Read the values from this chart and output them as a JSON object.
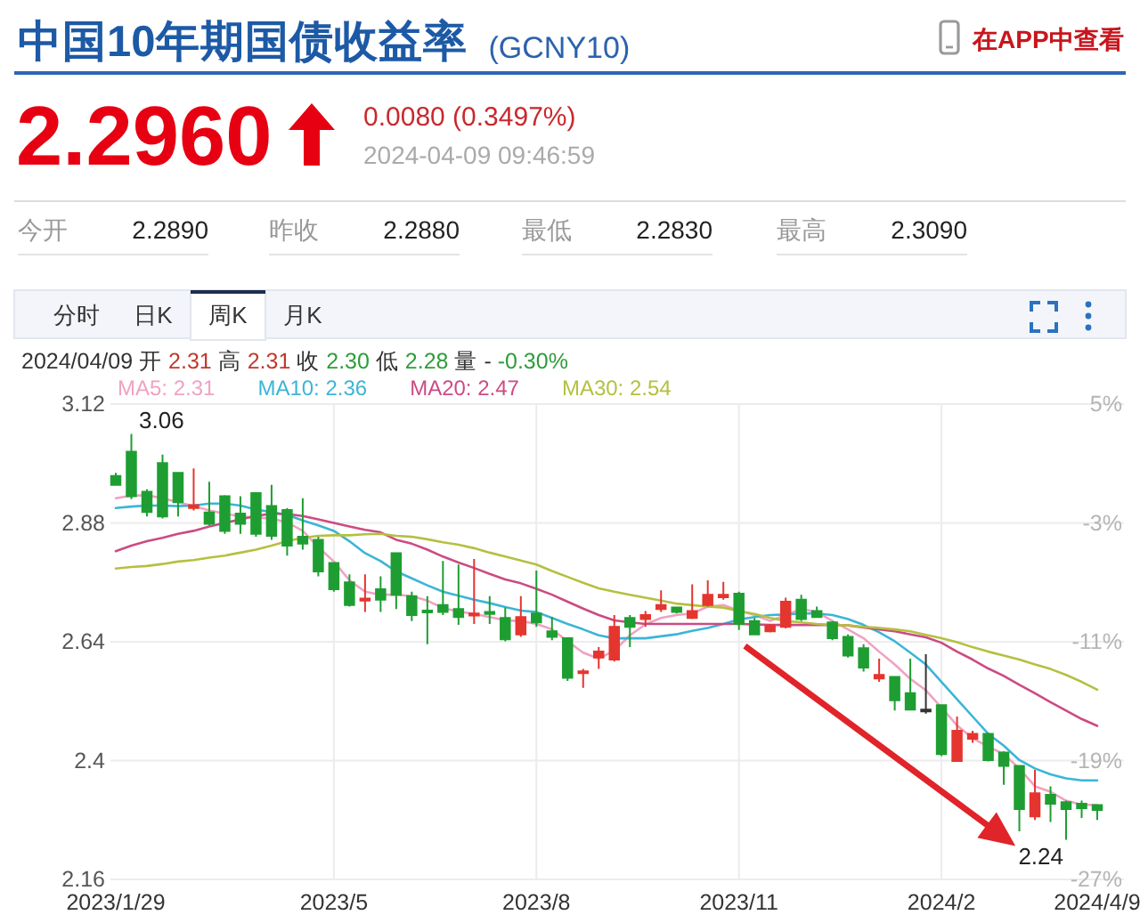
{
  "chart_data": {
    "type": "candlestick",
    "title": "中国10年期国债收益率",
    "subtitle": "(GCNY10)",
    "categories": [
      "2023/1/29",
      null,
      null,
      null,
      null,
      null,
      null,
      null,
      null,
      null,
      null,
      null,
      null,
      null,
      "2023/5",
      null,
      null,
      null,
      null,
      null,
      null,
      null,
      null,
      null,
      null,
      null,
      null,
      "2023/8",
      null,
      null,
      null,
      null,
      null,
      null,
      null,
      null,
      null,
      null,
      null,
      null,
      "2023/11",
      null,
      null,
      null,
      null,
      null,
      null,
      null,
      null,
      null,
      null,
      null,
      null,
      "2024/2",
      null,
      null,
      null,
      null,
      null,
      null,
      null,
      null,
      null,
      "2024/4/9"
    ],
    "ohlc": [
      [
        2.975,
        2.981,
        2.955,
        2.957
      ],
      [
        3.024,
        3.06,
        2.928,
        2.934
      ],
      [
        2.943,
        2.948,
        2.893,
        2.902
      ],
      [
        3.001,
        3.018,
        2.889,
        2.893
      ],
      [
        2.981,
        2.983,
        2.893,
        2.922
      ],
      [
        2.91,
        2.99,
        2.905,
        2.916
      ],
      [
        2.901,
        2.963,
        2.875,
        2.878
      ],
      [
        2.934,
        2.936,
        2.858,
        2.864
      ],
      [
        2.899,
        2.934,
        2.858,
        2.878
      ],
      [
        2.94,
        2.94,
        2.852,
        2.858
      ],
      [
        2.914,
        2.957,
        2.846,
        2.854
      ],
      [
        2.906,
        2.91,
        2.814,
        2.834
      ],
      [
        2.852,
        2.93,
        2.826,
        2.838
      ],
      [
        2.846,
        2.852,
        2.772,
        2.782
      ],
      [
        2.799,
        2.801,
        2.741,
        2.746
      ],
      [
        2.76,
        2.776,
        2.711,
        2.714
      ],
      [
        2.723,
        2.776,
        2.7,
        2.727
      ],
      [
        2.746,
        2.772,
        2.7,
        2.725
      ],
      [
        2.819,
        2.819,
        2.706,
        2.735
      ],
      [
        2.732,
        2.741,
        2.682,
        2.694
      ],
      [
        2.702,
        2.732,
        2.635,
        2.7
      ],
      [
        2.714,
        2.803,
        2.694,
        2.7
      ],
      [
        2.706,
        2.796,
        2.674,
        2.69
      ],
      [
        2.693,
        2.807,
        2.676,
        2.697
      ],
      [
        2.7,
        2.732,
        2.676,
        2.696
      ],
      [
        2.688,
        2.709,
        2.641,
        2.645
      ],
      [
        2.655,
        2.732,
        2.65,
        2.69
      ],
      [
        2.697,
        2.784,
        2.67,
        2.679
      ],
      [
        2.661,
        2.69,
        2.643,
        2.65
      ],
      [
        2.647,
        2.647,
        2.561,
        2.567
      ],
      [
        2.577,
        2.585,
        2.547,
        2.58
      ],
      [
        2.608,
        2.629,
        2.585,
        2.62
      ],
      [
        2.604,
        2.694,
        2.6,
        2.67
      ],
      [
        2.688,
        2.694,
        2.629,
        2.67
      ],
      [
        2.686,
        2.702,
        2.67,
        2.694
      ],
      [
        2.706,
        2.744,
        2.7,
        2.714
      ],
      [
        2.709,
        2.709,
        2.697,
        2.7
      ],
      [
        2.688,
        2.756,
        2.686,
        2.702
      ],
      [
        2.714,
        2.764,
        2.711,
        2.735
      ],
      [
        2.73,
        2.761,
        2.725,
        2.735
      ],
      [
        2.737,
        2.741,
        2.664,
        2.676
      ],
      [
        2.682,
        2.688,
        2.653,
        2.655
      ],
      [
        2.661,
        2.676,
        2.659,
        2.673
      ],
      [
        2.67,
        2.729,
        2.667,
        2.721
      ],
      [
        2.725,
        2.735,
        2.682,
        2.686
      ],
      [
        2.702,
        2.711,
        2.688,
        2.69
      ],
      [
        2.679,
        2.682,
        2.643,
        2.647
      ],
      [
        2.65,
        2.655,
        2.608,
        2.612
      ],
      [
        2.627,
        2.635,
        2.58,
        2.588
      ],
      [
        2.566,
        2.606,
        2.559,
        2.573
      ],
      [
        2.569,
        2.571,
        2.501,
        2.522
      ],
      [
        2.536,
        2.606,
        2.501,
        2.503
      ],
      [
        2.501,
        2.615,
        2.495,
        2.501
      ],
      [
        2.512,
        2.512,
        2.409,
        2.413
      ],
      [
        2.399,
        2.489,
        2.398,
        2.46
      ],
      [
        2.444,
        2.46,
        2.436,
        2.454
      ],
      [
        2.454,
        2.456,
        2.398,
        2.401
      ],
      [
        2.416,
        2.419,
        2.351,
        2.389
      ],
      [
        2.389,
        2.389,
        2.257,
        2.302
      ],
      [
        2.287,
        2.381,
        2.28,
        2.334
      ],
      [
        2.331,
        2.348,
        2.276,
        2.313
      ],
      [
        2.316,
        2.319,
        2.24,
        2.302
      ],
      [
        2.313,
        2.319,
        2.284,
        2.304
      ],
      [
        2.31,
        2.31,
        2.28,
        2.3
      ]
    ],
    "colors": [
      "#1e9e32",
      "#1e9e32",
      "#1e9e32",
      "#1e9e32",
      "#1e9e32",
      "#e5352f",
      "#1e9e32",
      "#1e9e32",
      "#1e9e32",
      "#1e9e32",
      "#1e9e32",
      "#1e9e32",
      "#1e9e32",
      "#1e9e32",
      "#1e9e32",
      "#1e9e32",
      "#e5352f",
      "#1e9e32",
      "#1e9e32",
      "#1e9e32",
      "#1e9e32",
      "#1e9e32",
      "#1e9e32",
      "#e5352f",
      "#1e9e32",
      "#1e9e32",
      "#e5352f",
      "#1e9e32",
      "#1e9e32",
      "#1e9e32",
      "#e5352f",
      "#e5352f",
      "#e5352f",
      "#1e9e32",
      "#e5352f",
      "#e5352f",
      "#1e9e32",
      "#e5352f",
      "#e5352f",
      "#e5352f",
      "#1e9e32",
      "#1e9e32",
      "#e5352f",
      "#e5352f",
      "#1e9e32",
      "#1e9e32",
      "#1e9e32",
      "#1e9e32",
      "#1e9e32",
      "#e5352f",
      "#1e9e32",
      "#1e9e32",
      "#333333",
      "#1e9e32",
      "#e5352f",
      "#e5352f",
      "#1e9e32",
      "#1e9e32",
      "#1e9e32",
      "#e5352f",
      "#1e9e32",
      "#1e9e32",
      "#1e9e32",
      "#1e9e32"
    ],
    "series": [
      {
        "name": "MA5: 2.31",
        "type": "line",
        "color": "#f0a2c2",
        "values": [
          2.93,
          2.935,
          2.936,
          2.93,
          2.922,
          2.914,
          2.905,
          2.899,
          2.893,
          2.891,
          2.889,
          2.881,
          2.864,
          2.831,
          2.802,
          2.764,
          2.741,
          2.735,
          2.735,
          2.732,
          2.723,
          2.708,
          2.701,
          2.696,
          2.69,
          2.683,
          2.682,
          2.676,
          2.665,
          2.641,
          2.618,
          2.606,
          2.622,
          2.653,
          2.675,
          2.688,
          2.694,
          2.697,
          2.711,
          2.714,
          2.703,
          2.694,
          2.682,
          2.694,
          2.706,
          2.7,
          2.682,
          2.665,
          2.647,
          2.62,
          2.594,
          2.565,
          2.542,
          2.507,
          2.471,
          2.445,
          2.428,
          2.413,
          2.384,
          2.348,
          2.337,
          2.319,
          2.311,
          2.31
        ]
      },
      {
        "name": "MA10: 2.36",
        "type": "line",
        "color": "#3bb5d6",
        "values": [
          2.91,
          2.913,
          2.915,
          2.915,
          2.914,
          2.915,
          2.919,
          2.919,
          2.915,
          2.907,
          2.902,
          2.896,
          2.885,
          2.875,
          2.864,
          2.843,
          2.819,
          2.803,
          2.782,
          2.768,
          2.754,
          2.741,
          2.733,
          2.725,
          2.718,
          2.71,
          2.703,
          2.7,
          2.688,
          2.676,
          2.665,
          2.653,
          2.647,
          2.647,
          2.647,
          2.651,
          2.655,
          2.662,
          2.668,
          2.676,
          2.685,
          2.69,
          2.694,
          2.695,
          2.697,
          2.697,
          2.694,
          2.686,
          2.674,
          2.659,
          2.641,
          2.618,
          2.594,
          2.559,
          2.524,
          2.489,
          2.454,
          2.43,
          2.401,
          2.384,
          2.372,
          2.364,
          2.36,
          2.36
        ]
      },
      {
        "name": "MA20: 2.47",
        "type": "line",
        "color": "#cc4b82",
        "values": [
          2.823,
          2.834,
          2.843,
          2.85,
          2.858,
          2.864,
          2.873,
          2.88,
          2.887,
          2.894,
          2.899,
          2.898,
          2.894,
          2.887,
          2.88,
          2.873,
          2.866,
          2.861,
          2.846,
          2.838,
          2.826,
          2.812,
          2.8,
          2.789,
          2.777,
          2.766,
          2.758,
          2.747,
          2.735,
          2.721,
          2.707,
          2.694,
          2.683,
          2.679,
          2.676,
          2.676,
          2.676,
          2.676,
          2.676,
          2.676,
          2.676,
          2.675,
          2.674,
          2.674,
          2.674,
          2.674,
          2.674,
          2.673,
          2.669,
          2.665,
          2.661,
          2.655,
          2.649,
          2.638,
          2.62,
          2.604,
          2.586,
          2.571,
          2.553,
          2.536,
          2.518,
          2.501,
          2.484,
          2.47
        ]
      },
      {
        "name": "MA30: 2.54",
        "type": "line",
        "color": "#b5c040",
        "values": [
          2.788,
          2.791,
          2.793,
          2.797,
          2.802,
          2.805,
          2.81,
          2.814,
          2.82,
          2.826,
          2.834,
          2.843,
          2.85,
          2.854,
          2.855,
          2.855,
          2.857,
          2.858,
          2.854,
          2.852,
          2.847,
          2.841,
          2.836,
          2.829,
          2.82,
          2.812,
          2.804,
          2.796,
          2.783,
          2.771,
          2.759,
          2.748,
          2.741,
          2.735,
          2.729,
          2.723,
          2.717,
          2.714,
          2.711,
          2.709,
          2.702,
          2.696,
          2.688,
          2.682,
          2.679,
          2.676,
          2.674,
          2.673,
          2.67,
          2.668,
          2.665,
          2.661,
          2.654,
          2.647,
          2.639,
          2.629,
          2.62,
          2.612,
          2.604,
          2.594,
          2.585,
          2.573,
          2.559,
          2.543
        ]
      }
    ],
    "ylim": [
      2.16,
      3.12
    ],
    "yticks": [
      2.16,
      2.4,
      2.64,
      2.88,
      3.12
    ],
    "y2lim": [
      -27,
      5
    ],
    "y2ticks": [
      {
        "value": -27,
        "label": "-27%"
      },
      {
        "value": -19,
        "label": "-19%"
      },
      {
        "value": -11,
        "label": "-11%"
      },
      {
        "value": -3,
        "label": "-3%"
      },
      {
        "value": 5,
        "label": "5%"
      }
    ],
    "grid": true,
    "legend": "top left",
    "annotations": [
      "在APP中查看",
      "2.2960",
      "0.0080 (0.3497%)",
      "2024-04-09 09:46:59",
      "今开",
      "2.2890",
      "昨收",
      "2.2880",
      "最低",
      "2.2830",
      "最高",
      "2.3090",
      "分时",
      "日K",
      "周K",
      "月K",
      "2024/04/09 开 2.31 高 2.31 收 2.30 低 2.28 量 - -0.30%",
      "3.06",
      "2.24"
    ]
  }
}
